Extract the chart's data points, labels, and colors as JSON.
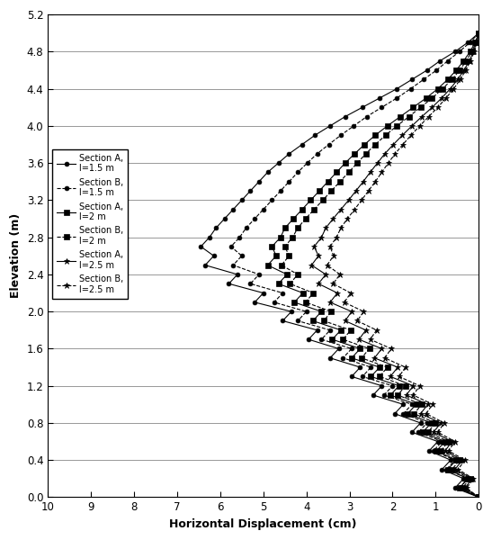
{
  "xlabel": "Horizontal Displacement (cm)",
  "ylabel": "Elevation (m)",
  "xlim": [
    10,
    0
  ],
  "ylim": [
    0,
    5.2
  ],
  "xticks": [
    10,
    9,
    8,
    7,
    6,
    5,
    4,
    3,
    2,
    1,
    0
  ],
  "yticks": [
    0,
    0.4,
    0.8,
    1.2,
    1.6,
    2.0,
    2.4,
    2.8,
    3.2,
    3.6,
    4.0,
    4.4,
    4.8,
    5.2
  ],
  "legend_labels": [
    "Section A,\nl=1.5 m",
    "Section B,\nl=1.5 m",
    "Section A,\nl=2 m",
    "Section B,\nl=2 m",
    "Section A,\nl=2.5 m",
    "Section B,\nl=2.5 m"
  ],
  "background_color": "#ffffff",
  "series": [
    {
      "label": "Section A, l=1.5 m",
      "elevations": [
        0.0,
        0.1,
        0.2,
        0.3,
        0.4,
        0.5,
        0.6,
        0.7,
        0.8,
        0.9,
        1.0,
        1.1,
        1.2,
        1.3,
        1.4,
        1.5,
        1.6,
        1.7,
        1.8,
        1.9,
        2.0,
        2.1,
        2.2,
        2.3,
        2.4,
        2.5,
        2.6,
        2.7,
        2.8,
        2.9,
        3.0,
        3.1,
        3.2,
        3.3,
        3.4,
        3.5,
        3.6,
        3.7,
        3.8,
        3.9,
        4.0,
        4.1,
        4.2,
        4.3,
        4.4,
        4.5,
        4.6,
        4.7,
        4.8,
        4.9,
        5.0
      ],
      "displacements": [
        0.0,
        0.55,
        0.35,
        0.85,
        0.65,
        1.15,
        0.95,
        1.55,
        1.35,
        1.95,
        1.75,
        2.45,
        2.25,
        2.95,
        2.75,
        3.45,
        3.25,
        3.95,
        3.75,
        4.55,
        4.35,
        5.2,
        5.0,
        5.8,
        5.6,
        6.35,
        6.15,
        6.45,
        6.25,
        6.1,
        5.9,
        5.7,
        5.5,
        5.3,
        5.1,
        4.9,
        4.65,
        4.4,
        4.1,
        3.8,
        3.45,
        3.1,
        2.7,
        2.3,
        1.9,
        1.55,
        1.2,
        0.9,
        0.55,
        0.25,
        0.0
      ]
    },
    {
      "label": "Section B, l=1.5 m",
      "elevations": [
        0.0,
        0.1,
        0.2,
        0.3,
        0.4,
        0.5,
        0.6,
        0.7,
        0.8,
        0.9,
        1.0,
        1.1,
        1.2,
        1.3,
        1.4,
        1.5,
        1.6,
        1.7,
        1.8,
        1.9,
        2.0,
        2.1,
        2.2,
        2.3,
        2.4,
        2.5,
        2.6,
        2.7,
        2.8,
        2.9,
        3.0,
        3.1,
        3.2,
        3.3,
        3.4,
        3.5,
        3.6,
        3.7,
        3.8,
        3.9,
        4.0,
        4.1,
        4.2,
        4.3,
        4.4,
        4.5,
        4.6,
        4.7,
        4.8,
        4.9,
        5.0
      ],
      "displacements": [
        0.0,
        0.45,
        0.25,
        0.75,
        0.55,
        1.05,
        0.85,
        1.4,
        1.2,
        1.75,
        1.55,
        2.2,
        2.0,
        2.7,
        2.5,
        3.15,
        2.95,
        3.65,
        3.45,
        4.2,
        4.0,
        4.75,
        4.55,
        5.3,
        5.1,
        5.7,
        5.5,
        5.75,
        5.55,
        5.4,
        5.2,
        5.0,
        4.8,
        4.6,
        4.4,
        4.2,
        3.98,
        3.75,
        3.48,
        3.2,
        2.9,
        2.6,
        2.25,
        1.9,
        1.58,
        1.28,
        0.98,
        0.72,
        0.45,
        0.2,
        0.0
      ]
    },
    {
      "label": "Section A, l=2 m",
      "elevations": [
        0.0,
        0.1,
        0.2,
        0.3,
        0.4,
        0.5,
        0.6,
        0.7,
        0.8,
        0.9,
        1.0,
        1.1,
        1.2,
        1.3,
        1.4,
        1.5,
        1.6,
        1.7,
        1.8,
        1.9,
        2.0,
        2.1,
        2.2,
        2.3,
        2.4,
        2.5,
        2.6,
        2.7,
        2.8,
        2.9,
        3.0,
        3.1,
        3.2,
        3.3,
        3.4,
        3.5,
        3.6,
        3.7,
        3.8,
        3.9,
        4.0,
        4.1,
        4.2,
        4.3,
        4.4,
        4.5,
        4.6,
        4.7,
        4.8,
        4.9,
        5.0
      ],
      "displacements": [
        0.0,
        0.45,
        0.25,
        0.72,
        0.52,
        0.98,
        0.78,
        1.3,
        1.1,
        1.65,
        1.45,
        2.05,
        1.85,
        2.5,
        2.3,
        2.95,
        2.75,
        3.4,
        3.2,
        3.85,
        3.65,
        4.28,
        4.08,
        4.65,
        4.45,
        4.9,
        4.7,
        4.8,
        4.6,
        4.5,
        4.3,
        4.1,
        3.9,
        3.7,
        3.5,
        3.3,
        3.1,
        2.88,
        2.65,
        2.4,
        2.12,
        1.82,
        1.52,
        1.22,
        0.95,
        0.72,
        0.52,
        0.35,
        0.2,
        0.08,
        0.0
      ]
    },
    {
      "label": "Section B, l=2 m",
      "elevations": [
        0.0,
        0.1,
        0.2,
        0.3,
        0.4,
        0.5,
        0.6,
        0.7,
        0.8,
        0.9,
        1.0,
        1.1,
        1.2,
        1.3,
        1.4,
        1.5,
        1.6,
        1.7,
        1.8,
        1.9,
        2.0,
        2.1,
        2.2,
        2.3,
        2.4,
        2.5,
        2.6,
        2.7,
        2.8,
        2.9,
        3.0,
        3.1,
        3.2,
        3.3,
        3.4,
        3.5,
        3.6,
        3.7,
        3.8,
        3.9,
        4.0,
        4.1,
        4.2,
        4.3,
        4.4,
        4.5,
        4.6,
        4.7,
        4.8,
        4.9,
        5.0
      ],
      "displacements": [
        0.0,
        0.38,
        0.2,
        0.62,
        0.44,
        0.88,
        0.7,
        1.18,
        1.0,
        1.5,
        1.32,
        1.88,
        1.7,
        2.3,
        2.12,
        2.72,
        2.54,
        3.15,
        2.97,
        3.6,
        3.42,
        4.02,
        3.84,
        4.38,
        4.2,
        4.58,
        4.4,
        4.5,
        4.32,
        4.2,
        4.02,
        3.82,
        3.62,
        3.42,
        3.22,
        3.02,
        2.82,
        2.62,
        2.4,
        2.16,
        1.9,
        1.62,
        1.35,
        1.08,
        0.84,
        0.62,
        0.44,
        0.29,
        0.16,
        0.06,
        0.0
      ]
    },
    {
      "label": "Section A, l=2.5 m",
      "elevations": [
        0.0,
        0.1,
        0.2,
        0.3,
        0.4,
        0.5,
        0.6,
        0.7,
        0.8,
        0.9,
        1.0,
        1.1,
        1.2,
        1.3,
        1.4,
        1.5,
        1.6,
        1.7,
        1.8,
        1.9,
        2.0,
        2.1,
        2.2,
        2.3,
        2.4,
        2.5,
        2.6,
        2.7,
        2.8,
        2.9,
        3.0,
        3.1,
        3.2,
        3.3,
        3.4,
        3.5,
        3.6,
        3.7,
        3.8,
        3.9,
        4.0,
        4.1,
        4.2,
        4.3,
        4.4,
        4.5,
        4.6,
        4.7,
        4.8,
        4.9,
        5.0
      ],
      "displacements": [
        0.0,
        0.32,
        0.15,
        0.55,
        0.38,
        0.78,
        0.62,
        1.05,
        0.88,
        1.35,
        1.18,
        1.68,
        1.52,
        2.05,
        1.88,
        2.42,
        2.25,
        2.78,
        2.62,
        3.1,
        2.95,
        3.45,
        3.28,
        3.72,
        3.55,
        3.88,
        3.72,
        3.82,
        3.65,
        3.55,
        3.38,
        3.2,
        3.02,
        2.85,
        2.68,
        2.52,
        2.35,
        2.18,
        1.98,
        1.77,
        1.55,
        1.32,
        1.08,
        0.86,
        0.66,
        0.49,
        0.34,
        0.22,
        0.12,
        0.05,
        0.0
      ]
    },
    {
      "label": "Section B, l=2.5 m",
      "elevations": [
        0.0,
        0.1,
        0.2,
        0.3,
        0.4,
        0.5,
        0.6,
        0.7,
        0.8,
        0.9,
        1.0,
        1.1,
        1.2,
        1.3,
        1.4,
        1.5,
        1.6,
        1.7,
        1.8,
        1.9,
        2.0,
        2.1,
        2.2,
        2.3,
        2.4,
        2.5,
        2.6,
        2.7,
        2.8,
        2.9,
        3.0,
        3.1,
        3.2,
        3.3,
        3.4,
        3.5,
        3.6,
        3.7,
        3.8,
        3.9,
        4.0,
        4.1,
        4.2,
        4.3,
        4.4,
        4.5,
        4.6,
        4.7,
        4.8,
        4.9,
        5.0
      ],
      "displacements": [
        0.0,
        0.28,
        0.12,
        0.48,
        0.32,
        0.7,
        0.55,
        0.95,
        0.8,
        1.22,
        1.07,
        1.52,
        1.37,
        1.85,
        1.7,
        2.18,
        2.03,
        2.52,
        2.37,
        2.82,
        2.67,
        3.12,
        2.97,
        3.38,
        3.22,
        3.52,
        3.37,
        3.45,
        3.3,
        3.2,
        3.05,
        2.88,
        2.72,
        2.56,
        2.4,
        2.25,
        2.1,
        1.94,
        1.76,
        1.57,
        1.37,
        1.16,
        0.95,
        0.76,
        0.58,
        0.43,
        0.3,
        0.19,
        0.1,
        0.04,
        0.0
      ]
    }
  ]
}
